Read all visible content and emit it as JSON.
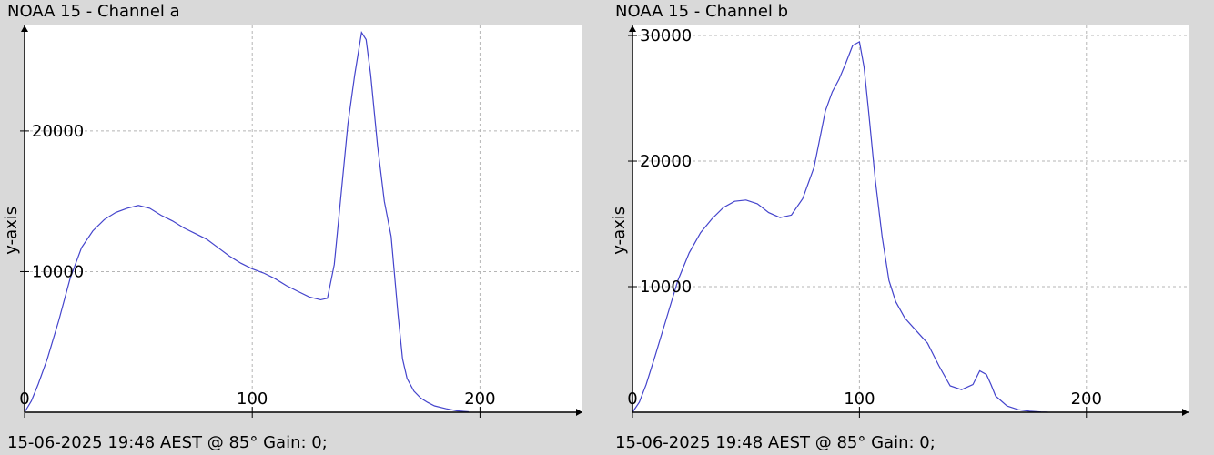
{
  "chart_data": [
    {
      "type": "line",
      "title": "NOAA 15 - Channel a",
      "ylabel": "y-axis",
      "xlabel": "",
      "footer": "15-06-2025 19:48 AEST @ 85° Gain: 0;",
      "xlim": [
        0,
        245
      ],
      "ylim": [
        0,
        27500
      ],
      "xticks": [
        0,
        100,
        200
      ],
      "yticks": [
        10000,
        20000
      ],
      "xtick_labels": [
        "0",
        "100",
        "200"
      ],
      "ytick_labels": [
        "10000",
        "20000"
      ],
      "grid": true,
      "line_color": "#4444cc",
      "x": [
        0,
        3,
        6,
        10,
        15,
        20,
        25,
        30,
        35,
        40,
        45,
        50,
        55,
        60,
        65,
        70,
        75,
        80,
        85,
        90,
        95,
        100,
        105,
        110,
        115,
        120,
        125,
        130,
        133,
        136,
        139,
        142,
        145,
        148,
        150,
        152,
        155,
        158,
        161,
        164,
        166,
        168,
        171,
        174,
        177,
        180,
        185,
        190,
        195
      ],
      "y": [
        0,
        800,
        2000,
        3800,
        6500,
        9500,
        11700,
        12900,
        13700,
        14200,
        14500,
        14700,
        14500,
        14000,
        13600,
        13100,
        12700,
        12300,
        11700,
        11100,
        10600,
        10200,
        9900,
        9500,
        9000,
        8600,
        8200,
        8000,
        8100,
        10500,
        15500,
        20500,
        24000,
        27000,
        26500,
        24000,
        19000,
        15000,
        12500,
        7000,
        3800,
        2400,
        1500,
        1000,
        700,
        450,
        250,
        100,
        30
      ]
    },
    {
      "type": "line",
      "title": "NOAA 15 - Channel b",
      "ylabel": "y-axis",
      "xlabel": "",
      "footer": "15-06-2025 19:48 AEST @ 85° Gain: 0;",
      "xlim": [
        0,
        245
      ],
      "ylim": [
        0,
        30800
      ],
      "xticks": [
        0,
        100,
        200
      ],
      "yticks": [
        10000,
        20000,
        30000
      ],
      "xtick_labels": [
        "0",
        "100",
        "200"
      ],
      "ytick_labels": [
        "10000",
        "20000",
        "30000"
      ],
      "grid": true,
      "line_color": "#4444cc",
      "x": [
        0,
        3,
        6,
        10,
        15,
        20,
        25,
        30,
        35,
        40,
        45,
        50,
        55,
        60,
        65,
        70,
        75,
        80,
        85,
        88,
        91,
        94,
        97,
        100,
        102,
        104,
        107,
        110,
        113,
        116,
        120,
        125,
        130,
        135,
        140,
        145,
        150,
        153,
        156,
        158,
        160,
        165,
        170,
        175,
        180,
        183
      ],
      "y": [
        0,
        800,
        2200,
        4500,
        7500,
        10500,
        12700,
        14300,
        15400,
        16300,
        16800,
        16900,
        16600,
        15900,
        15500,
        15700,
        17000,
        19500,
        24000,
        25500,
        26500,
        27800,
        29200,
        29500,
        27500,
        24000,
        18500,
        14000,
        10500,
        8800,
        7500,
        6500,
        5500,
        3700,
        2100,
        1800,
        2200,
        3300,
        3000,
        2200,
        1300,
        500,
        200,
        80,
        20,
        0
      ]
    }
  ]
}
